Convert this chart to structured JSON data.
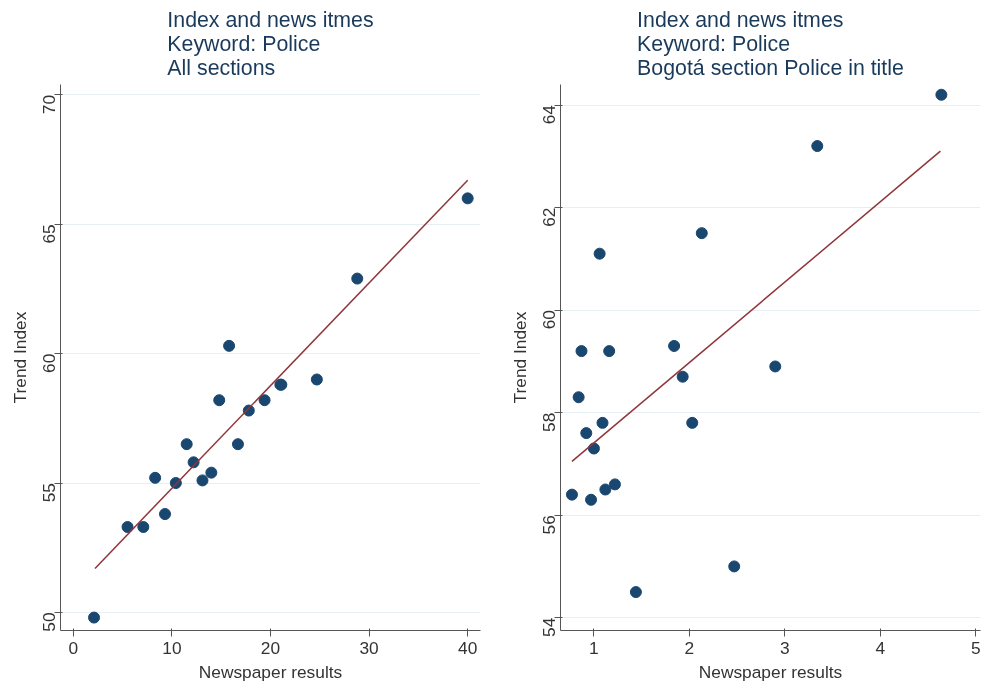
{
  "chart_data": [
    {
      "type": "scatter",
      "title": "Index and news itmes\nKeyword: Police\nAll sections",
      "xlabel": "Newspaper results",
      "ylabel": "Trend Index",
      "xlim": [
        -1.3,
        41.3
      ],
      "ylim": [
        49.3,
        70.4
      ],
      "xticks": [
        0,
        10,
        20,
        30,
        40
      ],
      "yticks": [
        50,
        55,
        60,
        65,
        70
      ],
      "grid": "y",
      "series": [
        {
          "marker": "circle",
          "color": "#1a476f",
          "x": [
            2.1,
            5.5,
            7.1,
            8.3,
            9.3,
            10.4,
            11.5,
            12.2,
            13.1,
            14.0,
            14.8,
            15.8,
            16.7,
            17.8,
            19.4,
            21.0,
            21.1,
            24.7,
            28.8,
            40
          ],
          "values": [
            49.8,
            53.3,
            53.3,
            55.2,
            53.8,
            55.0,
            56.5,
            55.8,
            55.1,
            55.4,
            58.2,
            60.3,
            56.5,
            57.8,
            58.2,
            58.8,
            58.8,
            59.0,
            62.9,
            66.0
          ]
        },
        {
          "type": "line",
          "marker": "none",
          "color": "#90353b",
          "x": [
            2.2,
            40
          ],
          "values": [
            51.7,
            66.7
          ]
        }
      ]
    },
    {
      "type": "scatter",
      "title": "Index and news itmes\nKeyword: Police\nBogotá section Police in title",
      "xlabel": "Newspaper results",
      "ylabel": "Trend Index",
      "xlim": [
        0.65,
        5.05
      ],
      "ylim": [
        53.75,
        64.4
      ],
      "xticks": [
        1,
        2,
        3,
        4,
        5
      ],
      "yticks": [
        54,
        56,
        58,
        60,
        62,
        64
      ],
      "grid": "y",
      "series": [
        {
          "marker": "circle",
          "color": "#1a476f",
          "x": [
            0.77,
            0.84,
            0.87,
            0.92,
            0.97,
            1.0,
            1.06,
            1.09,
            1.12,
            1.16,
            1.22,
            1.44,
            1.84,
            1.93,
            2.03,
            2.13,
            2.47,
            2.9,
            3.34,
            4.64
          ],
          "values": [
            56.4,
            58.3,
            59.2,
            57.6,
            56.3,
            57.3,
            61.1,
            57.8,
            56.5,
            59.2,
            56.6,
            54.5,
            59.3,
            58.7,
            57.8,
            61.5,
            55.0,
            58.9,
            63.2,
            64.2
          ]
        },
        {
          "type": "line",
          "marker": "none",
          "color": "#90353b",
          "x": [
            0.77,
            4.63
          ],
          "values": [
            57.05,
            63.1
          ]
        }
      ]
    }
  ]
}
